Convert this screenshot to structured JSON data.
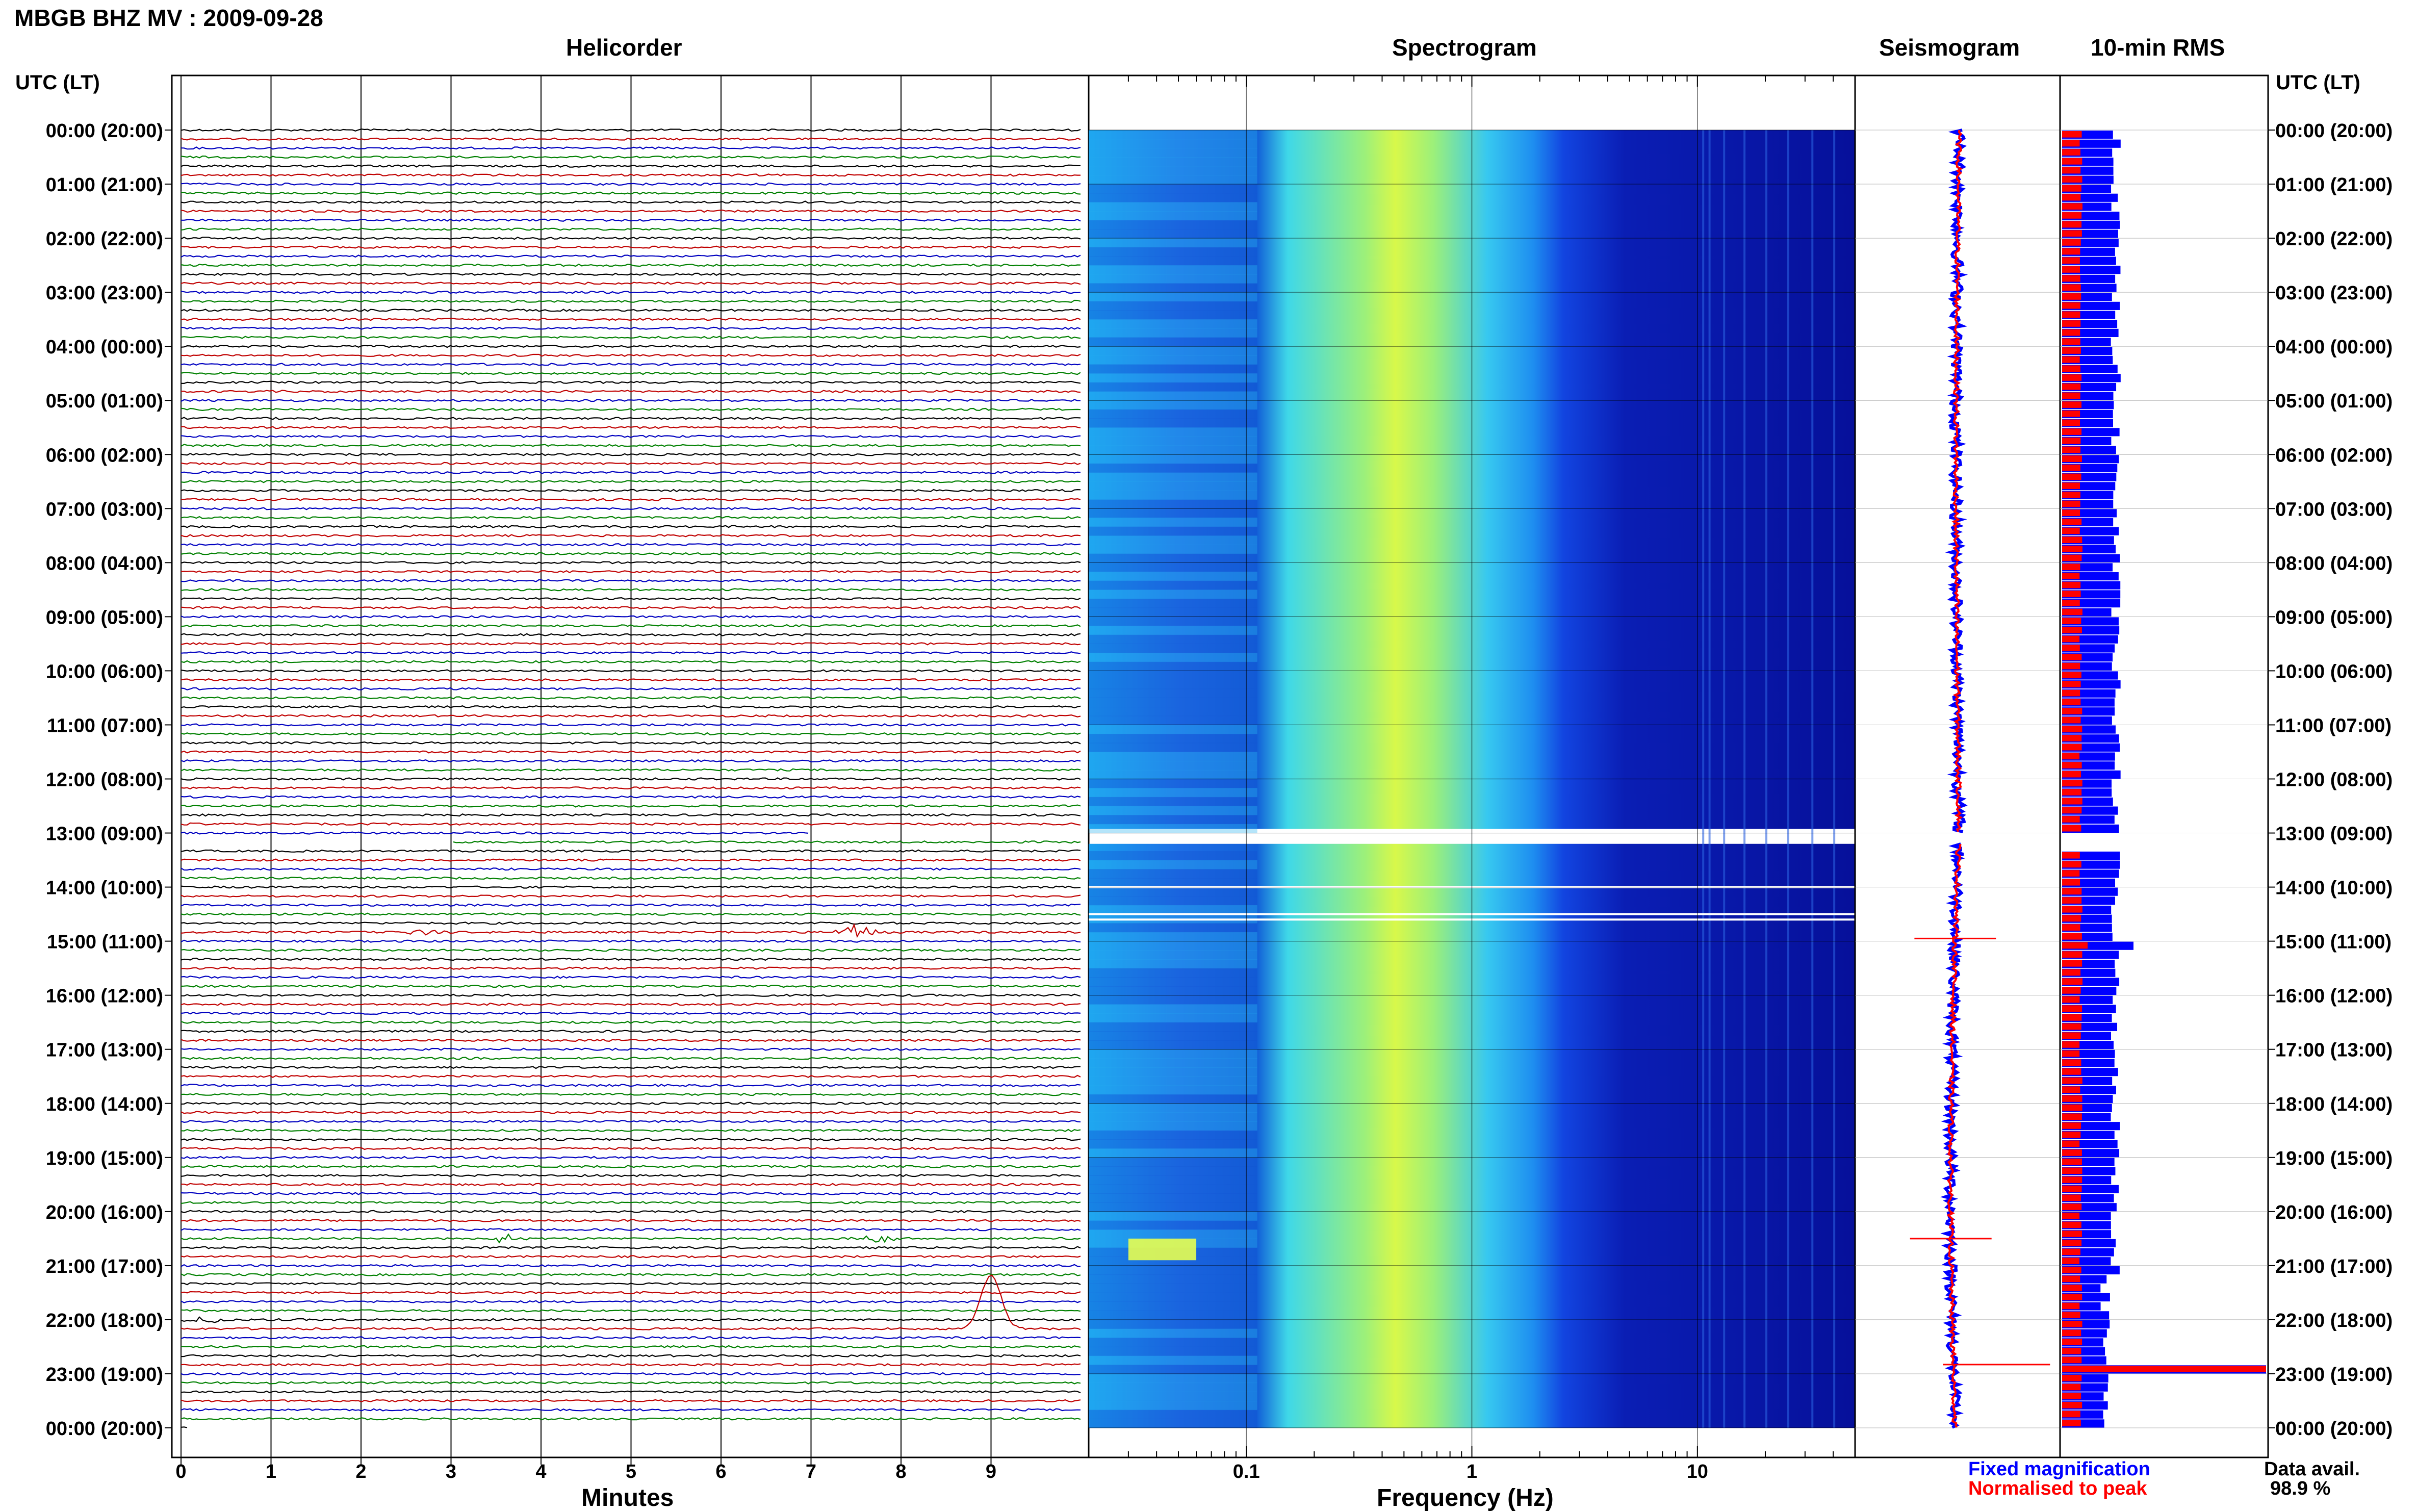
{
  "header": {
    "station_title": "MBGB BHZ MV : 2009-09-28",
    "utc_label_left": "UTC (LT)",
    "utc_label_right": "UTC (LT)"
  },
  "panels": {
    "helicorder_title": "Helicorder",
    "spectrogram_title": "Spectrogram",
    "seismogram_title": "Seismogram",
    "rms_title": "10-min RMS"
  },
  "time_labels": [
    "00:00 (20:00)",
    "01:00 (21:00)",
    "02:00 (22:00)",
    "03:00 (23:00)",
    "04:00 (00:00)",
    "05:00 (01:00)",
    "06:00 (02:00)",
    "07:00 (03:00)",
    "08:00 (04:00)",
    "09:00 (05:00)",
    "10:00 (06:00)",
    "11:00 (07:00)",
    "12:00 (08:00)",
    "13:00 (09:00)",
    "14:00 (10:00)",
    "15:00 (11:00)",
    "16:00 (12:00)",
    "17:00 (13:00)",
    "18:00 (14:00)",
    "19:00 (15:00)",
    "20:00 (16:00)",
    "21:00 (17:00)",
    "22:00 (18:00)",
    "23:00 (19:00)",
    "00:00 (20:00)"
  ],
  "footer": {
    "minutes_label": "Minutes",
    "frequency_label": "Frequency (Hz)",
    "legend_fixed": "Fixed magnification",
    "legend_normalised": "Normalised to peak",
    "data_avail_label": "Data avail.",
    "data_avail_value": "98.9 %"
  },
  "colors": {
    "trace_cycle": [
      "#000000",
      "#c00000",
      "#0000c0",
      "#008000"
    ],
    "fixed_magnification": "#0000ff",
    "normalised_to_peak": "#ff0000",
    "spectrogram_low": "#00008b",
    "spectrogram_high": "#e0ff40"
  },
  "chart_data": {
    "helicorder": {
      "type": "line",
      "xlabel": "Minutes",
      "x_ticks": [
        "0",
        "1",
        "2",
        "3",
        "4",
        "5",
        "6",
        "7",
        "8",
        "9"
      ],
      "xlim": [
        0,
        10
      ],
      "rows_per_hour": 6,
      "hours": 24,
      "events": [
        {
          "hour": 14.83,
          "minute": 7.5,
          "color": "#008000",
          "amplitude": 0.6
        },
        {
          "hour": 14.83,
          "minute": 2.7,
          "color": "#000000",
          "amplitude": 0.2
        },
        {
          "hour": 20.5,
          "minute": 3.6,
          "color": "#008000",
          "amplitude": 0.35
        },
        {
          "hour": 20.5,
          "minute": 7.7,
          "color": "#008000",
          "amplitude": 0.3
        },
        {
          "hour": 22.0,
          "minute": 0.3,
          "color": "#c00000",
          "amplitude": 0.3
        },
        {
          "hour": 22.17,
          "minute": 9.0,
          "color": "#000000",
          "amplitude": 3.5
        }
      ],
      "gaps": [
        {
          "hour_start": 13.0,
          "hour_end": 13.17,
          "minute_start": 7.0,
          "minute_end": 10.0
        },
        {
          "hour_start": 13.17,
          "hour_end": 13.33,
          "minute_start": 0,
          "minute_end": 3.0
        }
      ]
    },
    "spectrogram": {
      "type": "heatmap",
      "xlabel": "Frequency (Hz)",
      "x_scale": "log",
      "x_ticks": [
        "0.1",
        "1",
        "10"
      ],
      "xlim": [
        0.02,
        50
      ],
      "peak_frequency_hz": 0.35,
      "gap_hours": [
        13.0,
        13.2
      ]
    },
    "seismogram": {
      "type": "line",
      "series": [
        {
          "name": "Fixed magnification",
          "color": "#0000ff"
        },
        {
          "name": "Normalised to peak",
          "color": "#ff0000"
        }
      ],
      "spikes_hours": [
        14.95,
        20.5,
        22.83
      ]
    },
    "rms": {
      "type": "bar",
      "bins_per_hour": 6,
      "spike_hours": [
        14.95,
        22.83
      ],
      "series": [
        {
          "name": "Fixed magnification",
          "color": "#0000ff"
        },
        {
          "name": "Normalised to peak",
          "color": "#ff0000"
        }
      ]
    }
  }
}
